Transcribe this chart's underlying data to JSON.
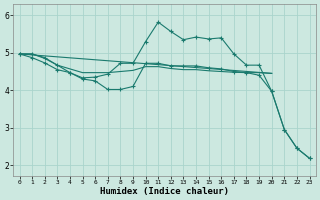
{
  "xlabel": "Humidex (Indice chaleur)",
  "background_color": "#cce8e0",
  "grid_color": "#aad4cc",
  "line_color": "#1a7a6e",
  "xlim": [
    -0.5,
    23.5
  ],
  "ylim": [
    1.7,
    6.3
  ],
  "yticks": [
    2,
    3,
    4,
    5,
    6
  ],
  "xticks": [
    0,
    1,
    2,
    3,
    4,
    5,
    6,
    7,
    8,
    9,
    10,
    11,
    12,
    13,
    14,
    15,
    16,
    17,
    18,
    19,
    20,
    21,
    22,
    23
  ],
  "line1_x": [
    0,
    1,
    2,
    3,
    4,
    5,
    6,
    7,
    8,
    9,
    10,
    11,
    12,
    13,
    14,
    15,
    16,
    17,
    18,
    19,
    20,
    21,
    22,
    23
  ],
  "line1_y": [
    4.97,
    4.97,
    4.87,
    4.67,
    4.47,
    4.33,
    4.35,
    4.43,
    4.72,
    4.72,
    5.3,
    5.82,
    5.57,
    5.35,
    5.42,
    5.37,
    5.4,
    4.97,
    4.67,
    4.67,
    3.97,
    2.95,
    2.45,
    2.18
  ],
  "line2_x": [
    0,
    1,
    2,
    3,
    4,
    5,
    6,
    7,
    8,
    9,
    10,
    11,
    12,
    13,
    14,
    15,
    16,
    17,
    18,
    19,
    20
  ],
  "line2_y": [
    4.97,
    4.97,
    4.85,
    4.67,
    4.57,
    4.47,
    4.47,
    4.47,
    4.5,
    4.53,
    4.63,
    4.63,
    4.58,
    4.55,
    4.55,
    4.52,
    4.5,
    4.48,
    4.47,
    4.47,
    4.45
  ],
  "line3_x": [
    0,
    20
  ],
  "line3_y": [
    4.97,
    4.45
  ],
  "line4_x": [
    0,
    1,
    2,
    3,
    4,
    5,
    6,
    7,
    8,
    9,
    10,
    11,
    12,
    13,
    14,
    15,
    16,
    17,
    18,
    19,
    20,
    21,
    22,
    23
  ],
  "line4_y": [
    4.97,
    4.87,
    4.73,
    4.55,
    4.47,
    4.3,
    4.25,
    4.02,
    4.02,
    4.1,
    4.72,
    4.72,
    4.65,
    4.65,
    4.65,
    4.6,
    4.57,
    4.5,
    4.47,
    4.4,
    3.97,
    2.95,
    2.45,
    2.18
  ]
}
